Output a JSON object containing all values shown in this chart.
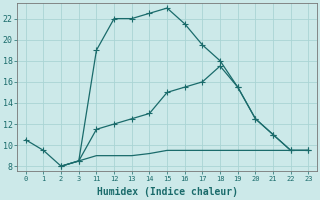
{
  "xlabel": "Humidex (Indice chaleur)",
  "background_color": "#cce9e9",
  "grid_color": "#aad4d4",
  "line_color": "#1a6b6b",
  "x_labels": [
    "0",
    "1",
    "2",
    "3",
    "11",
    "12",
    "13",
    "14",
    "15",
    "16",
    "17",
    "18",
    "19",
    "20",
    "21",
    "22",
    "23"
  ],
  "ylim": [
    7.5,
    23.5
  ],
  "yticks": [
    8,
    10,
    12,
    14,
    16,
    18,
    20,
    22
  ],
  "line1_xi": [
    0,
    1,
    2,
    3,
    4,
    5,
    6,
    7,
    8,
    9,
    10,
    11,
    12,
    13,
    14,
    15,
    16
  ],
  "line1_y": [
    10.5,
    9.5,
    8.0,
    8.5,
    19.0,
    22.0,
    22.0,
    22.5,
    23.0,
    21.5,
    19.5,
    18.0,
    15.5,
    12.5,
    11.0,
    9.5,
    9.5
  ],
  "line2_xi": [
    2,
    3,
    4,
    5,
    6,
    7,
    8,
    9,
    10,
    11,
    12,
    13,
    14,
    15,
    16
  ],
  "line2_y": [
    8.0,
    8.5,
    11.5,
    12.0,
    12.5,
    13.0,
    15.0,
    15.5,
    16.0,
    17.5,
    15.5,
    12.5,
    11.0,
    9.5,
    9.5
  ],
  "line3_xi": [
    2,
    3,
    4,
    5,
    6,
    7,
    8,
    9,
    10,
    11,
    12,
    13,
    14,
    15,
    16
  ],
  "line3_y": [
    8.0,
    8.5,
    9.0,
    9.0,
    9.0,
    9.2,
    9.5,
    9.5,
    9.5,
    9.5,
    9.5,
    9.5,
    9.5,
    9.5,
    9.5
  ]
}
